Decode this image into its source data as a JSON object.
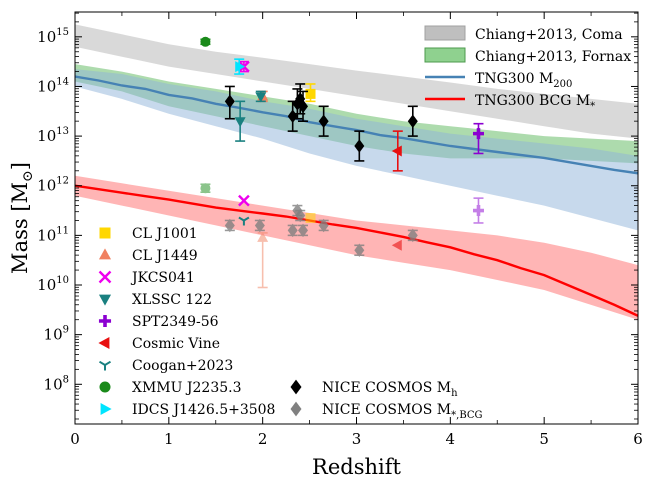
{
  "chart_data": {
    "type": "scatter",
    "title": "",
    "xlabel": "Redshift",
    "ylabel": "Mass [M",
    "ylabel_sub": "⊙",
    "ylabel_close": "]",
    "xlim": [
      0,
      6
    ],
    "ylim_log10": [
      7.2,
      15.5
    ],
    "grid": false,
    "legend_position": "upper-right / lower-left",
    "x_ticks": [
      0,
      1,
      2,
      3,
      4,
      5,
      6
    ],
    "x_tick_labels": [
      "0",
      "1",
      "2",
      "3",
      "4",
      "5",
      "6"
    ],
    "y_ticks_log10": [
      8,
      9,
      10,
      11,
      12,
      13,
      14,
      15
    ],
    "y_tick_labels": [
      {
        "base": "10",
        "exp": "8"
      },
      {
        "base": "10",
        "exp": "9"
      },
      {
        "base": "10",
        "exp": "10"
      },
      {
        "base": "10",
        "exp": "11"
      },
      {
        "base": "10",
        "exp": "12"
      },
      {
        "base": "10",
        "exp": "13"
      },
      {
        "base": "10",
        "exp": "14"
      },
      {
        "base": "10",
        "exp": "15"
      }
    ],
    "bands": [
      {
        "name": "Chiang+2013, Coma",
        "color": "#bfbfbf",
        "opacity": 0.6,
        "x": [
          0,
          0.5,
          1,
          1.5,
          2,
          2.5,
          3,
          3.5,
          4,
          4.5,
          5,
          5.5,
          6
        ],
        "lower_log10": [
          14.8,
          14.6,
          14.4,
          14.25,
          14.1,
          13.95,
          13.8,
          13.65,
          13.5,
          13.35,
          13.2,
          13.05,
          12.95
        ],
        "upper_log10": [
          15.25,
          15.05,
          14.85,
          14.7,
          14.58,
          14.45,
          14.32,
          14.2,
          14.08,
          13.95,
          13.85,
          13.75,
          13.65
        ]
      },
      {
        "name": "Chiang+2013, Fornax",
        "color": "#5cb85c",
        "opacity": 0.5,
        "x": [
          0,
          0.5,
          1,
          1.5,
          2,
          2.5,
          3,
          3.5,
          4,
          4.5,
          5,
          5.5,
          6
        ],
        "lower_log10": [
          14.1,
          13.9,
          13.6,
          13.4,
          13.2,
          13.0,
          12.8,
          12.65,
          12.55,
          12.55,
          12.55,
          12.5,
          12.45
        ],
        "upper_log10": [
          14.45,
          14.3,
          14.1,
          13.95,
          13.8,
          13.65,
          13.45,
          13.3,
          13.2,
          13.1,
          13.0,
          12.95,
          12.9
        ]
      },
      {
        "name": "TNG300 M200 scatter",
        "color": "#8fb4d9",
        "opacity": 0.5,
        "x": [
          0,
          0.5,
          1,
          1.5,
          2,
          2.5,
          3,
          3.5,
          4,
          4.5,
          5,
          5.5,
          6
        ],
        "lower_log10": [
          14.0,
          13.75,
          13.45,
          13.2,
          12.95,
          12.65,
          12.4,
          12.2,
          12.0,
          11.8,
          11.6,
          11.35,
          11.1
        ],
        "upper_log10": [
          14.35,
          14.25,
          14.05,
          13.9,
          13.7,
          13.55,
          13.35,
          13.2,
          13.05,
          12.95,
          12.85,
          12.75,
          12.6
        ]
      },
      {
        "name": "TNG300 BCG M* scatter",
        "color": "#ff6b6b",
        "opacity": 0.5,
        "x": [
          0,
          0.5,
          1,
          1.5,
          2,
          2.5,
          3,
          3.5,
          4,
          4.5,
          5,
          5.5,
          6
        ],
        "lower_log10": [
          11.8,
          11.6,
          11.4,
          11.2,
          11.0,
          10.8,
          10.6,
          10.45,
          10.3,
          10.1,
          9.9,
          9.6,
          9.3
        ],
        "upper_log10": [
          12.2,
          12.05,
          11.9,
          11.75,
          11.6,
          11.45,
          11.3,
          11.2,
          11.1,
          11.0,
          10.85,
          10.65,
          10.4
        ]
      }
    ],
    "lines": [
      {
        "name": "TNG300 M",
        "sub": "200",
        "color": "#4682b4",
        "x": [
          0,
          0.25,
          0.5,
          0.75,
          1,
          1.25,
          1.5,
          1.75,
          2,
          2.25,
          2.5,
          2.75,
          3,
          3.25,
          3.5,
          3.75,
          4,
          4.25,
          4.5,
          4.75,
          5,
          5.25,
          5.5,
          5.75,
          6
        ],
        "y_log10": [
          14.2,
          14.12,
          14.02,
          13.95,
          13.83,
          13.76,
          13.65,
          13.57,
          13.48,
          13.4,
          13.28,
          13.2,
          13.12,
          13.02,
          12.96,
          12.88,
          12.8,
          12.74,
          12.68,
          12.62,
          12.56,
          12.48,
          12.4,
          12.32,
          12.25
        ]
      },
      {
        "name": "TNG300 BCG M",
        "sub": "*",
        "color": "#ff0000",
        "x": [
          0,
          0.25,
          0.5,
          0.75,
          1,
          1.25,
          1.5,
          1.75,
          2,
          2.25,
          2.5,
          2.75,
          3,
          3.25,
          3.5,
          3.75,
          4,
          4.25,
          4.5,
          4.75,
          5,
          5.25,
          5.5,
          5.75,
          6
        ],
        "y_log10": [
          12.0,
          11.93,
          11.86,
          11.79,
          11.72,
          11.64,
          11.56,
          11.5,
          11.44,
          11.38,
          11.3,
          11.22,
          11.15,
          11.06,
          10.97,
          10.86,
          10.76,
          10.62,
          10.5,
          10.34,
          10.2,
          10.0,
          9.8,
          9.6,
          9.38
        ]
      }
    ],
    "points": [
      {
        "name": "CL J1001",
        "marker": "square",
        "color": "#ffd700",
        "x": 2.51,
        "y_log10": 13.85,
        "err_lo": 0.15,
        "err_hi": 0.2,
        "alpha": 1
      },
      {
        "name": "CL J1001 BCG",
        "marker": "square",
        "color": "#ffd700",
        "x": 2.51,
        "y_log10": 11.35,
        "err_lo": 0.05,
        "err_hi": 0.05,
        "alpha": 0.5
      },
      {
        "name": "CL J1449",
        "marker": "triangle-up",
        "color": "#f08060",
        "x": 2.0,
        "y_log10": 13.8,
        "err_lo": 0.1,
        "err_hi": 0.1,
        "alpha": 1
      },
      {
        "name": "CL J1449 BCG",
        "marker": "triangle-up",
        "color": "#f08060",
        "x": 2.0,
        "y_log10": 10.95,
        "err_lo": 1.0,
        "err_hi": 0.1,
        "alpha": 0.5
      },
      {
        "name": "JKCS041",
        "marker": "x",
        "color": "#ee00ee",
        "x": 1.8,
        "y_log10": 14.4,
        "err_lo": 0.1,
        "err_hi": 0.1,
        "alpha": 1
      },
      {
        "name": "JKCS041 BCG",
        "marker": "x",
        "color": "#ee00ee",
        "x": 1.8,
        "y_log10": 11.7,
        "err_lo": 0,
        "err_hi": 0,
        "alpha": 1
      },
      {
        "name": "XLSSC 122",
        "marker": "triangle-down",
        "color": "#1a8080",
        "x": 1.98,
        "y_log10": 13.8,
        "err_lo": 0.1,
        "err_hi": 0.1,
        "alpha": 1
      },
      {
        "name": "XLSSC 122 b",
        "marker": "triangle-down",
        "color": "#1a8080",
        "x": 1.76,
        "y_log10": 13.3,
        "err_lo": 0.4,
        "err_hi": 0.4,
        "alpha": 1
      },
      {
        "name": "SPT2349-56",
        "marker": "plus",
        "color": "#8b00d1",
        "x": 4.3,
        "y_log10": 13.05,
        "err_lo": 0.4,
        "err_hi": 0.2,
        "alpha": 1
      },
      {
        "name": "SPT2349-56 BCG",
        "marker": "plus",
        "color": "#8b00d1",
        "x": 4.3,
        "y_log10": 11.5,
        "err_lo": 0.25,
        "err_hi": 0.25,
        "alpha": 0.5
      },
      {
        "name": "Cosmic Vine",
        "marker": "triangle-left",
        "color": "#e81010",
        "x": 3.44,
        "y_log10": 12.7,
        "err_lo": 0.4,
        "err_hi": 0.4,
        "alpha": 1
      },
      {
        "name": "Cosmic Vine BCG",
        "marker": "triangle-left",
        "color": "#e81010",
        "x": 3.44,
        "y_log10": 10.8,
        "err_lo": 0,
        "err_hi": 0,
        "alpha": 0.6
      },
      {
        "name": "Coogan+2023",
        "marker": "tri",
        "color": "#1a8080",
        "x": 1.8,
        "y_log10": 11.3,
        "err_lo": 0,
        "err_hi": 0,
        "alpha": 1
      },
      {
        "name": "XMMU J2235.3",
        "marker": "circle",
        "color": "#1a8a1a",
        "x": 1.39,
        "y_log10": 14.9,
        "err_lo": 0.05,
        "err_hi": 0.05,
        "alpha": 1
      },
      {
        "name": "XMMU J2235.3 BCG",
        "marker": "circle",
        "color": "#1a8a1a",
        "x": 1.39,
        "y_log10": 11.95,
        "err_lo": 0.08,
        "err_hi": 0.08,
        "alpha": 0.5
      },
      {
        "name": "IDCS J1426.5+3508",
        "marker": "triangle-right",
        "color": "#00e5ff",
        "x": 1.75,
        "y_log10": 14.4,
        "err_lo": 0.15,
        "err_hi": 0.15,
        "alpha": 1
      },
      {
        "name": "NICE Mh 1",
        "marker": "diamond",
        "color": "#000000",
        "x": 1.65,
        "y_log10": 13.7,
        "err_lo": 0.35,
        "err_hi": 0.3,
        "alpha": 1
      },
      {
        "name": "NICE Mh 2",
        "marker": "diamond",
        "color": "#000000",
        "x": 2.32,
        "y_log10": 13.4,
        "err_lo": 0.3,
        "err_hi": 0.3,
        "alpha": 1
      },
      {
        "name": "NICE Mh 3",
        "marker": "diamond",
        "color": "#000000",
        "x": 2.37,
        "y_log10": 13.65,
        "err_lo": 0.3,
        "err_hi": 0.3,
        "alpha": 1
      },
      {
        "name": "NICE Mh 4",
        "marker": "diamond",
        "color": "#000000",
        "x": 2.4,
        "y_log10": 13.75,
        "err_lo": 0.3,
        "err_hi": 0.3,
        "alpha": 1
      },
      {
        "name": "NICE Mh 5",
        "marker": "diamond",
        "color": "#000000",
        "x": 2.43,
        "y_log10": 13.6,
        "err_lo": 0.3,
        "err_hi": 0.3,
        "alpha": 1
      },
      {
        "name": "NICE Mh 6",
        "marker": "diamond",
        "color": "#000000",
        "x": 2.65,
        "y_log10": 13.3,
        "err_lo": 0.3,
        "err_hi": 0.3,
        "alpha": 1
      },
      {
        "name": "NICE Mh 7",
        "marker": "diamond",
        "color": "#000000",
        "x": 3.03,
        "y_log10": 12.8,
        "err_lo": 0.3,
        "err_hi": 0.3,
        "alpha": 1
      },
      {
        "name": "NICE Mh 8",
        "marker": "diamond",
        "color": "#000000",
        "x": 3.6,
        "y_log10": 13.3,
        "err_lo": 0.3,
        "err_hi": 0.3,
        "alpha": 1
      },
      {
        "name": "NICE M* 1",
        "marker": "diamond",
        "color": "#808080",
        "x": 1.65,
        "y_log10": 11.2,
        "err_lo": 0.1,
        "err_hi": 0.1,
        "alpha": 0.8
      },
      {
        "name": "NICE M* 2",
        "marker": "diamond",
        "color": "#808080",
        "x": 1.97,
        "y_log10": 11.2,
        "err_lo": 0.1,
        "err_hi": 0.1,
        "alpha": 0.8
      },
      {
        "name": "NICE M* 3",
        "marker": "diamond",
        "color": "#808080",
        "x": 2.32,
        "y_log10": 11.1,
        "err_lo": 0.1,
        "err_hi": 0.1,
        "alpha": 0.8
      },
      {
        "name": "NICE M* 4",
        "marker": "diamond",
        "color": "#808080",
        "x": 2.37,
        "y_log10": 11.5,
        "err_lo": 0.1,
        "err_hi": 0.1,
        "alpha": 0.8
      },
      {
        "name": "NICE M* 5",
        "marker": "diamond",
        "color": "#808080",
        "x": 2.4,
        "y_log10": 11.4,
        "err_lo": 0.1,
        "err_hi": 0.1,
        "alpha": 0.8
      },
      {
        "name": "NICE M* 6",
        "marker": "diamond",
        "color": "#808080",
        "x": 2.43,
        "y_log10": 11.1,
        "err_lo": 0.1,
        "err_hi": 0.1,
        "alpha": 0.8
      },
      {
        "name": "NICE M* 7",
        "marker": "diamond",
        "color": "#808080",
        "x": 2.65,
        "y_log10": 11.2,
        "err_lo": 0.1,
        "err_hi": 0.1,
        "alpha": 0.8
      },
      {
        "name": "NICE M* 8",
        "marker": "diamond",
        "color": "#808080",
        "x": 3.03,
        "y_log10": 10.7,
        "err_lo": 0.1,
        "err_hi": 0.1,
        "alpha": 0.8
      },
      {
        "name": "NICE M* 9",
        "marker": "diamond",
        "color": "#808080",
        "x": 3.6,
        "y_log10": 11.0,
        "err_lo": 0.1,
        "err_hi": 0.1,
        "alpha": 0.8
      }
    ],
    "legend_top": [
      {
        "kind": "band",
        "label": "Chiang+2013, Coma",
        "sub": "",
        "color": "#bfbfbf",
        "edge": "#a0a0a0"
      },
      {
        "kind": "band",
        "label": "Chiang+2013, Fornax",
        "sub": "",
        "color": "#8fd18f",
        "edge": "#4c9a4c"
      },
      {
        "kind": "line",
        "label": "TNG300 M",
        "sub": "200",
        "color": "#4682b4"
      },
      {
        "kind": "line",
        "label": "TNG300 BCG M",
        "sub": "*",
        "color": "#ff0000"
      }
    ],
    "legend_left": [
      {
        "label": "CL J1001",
        "marker": "square",
        "color": "#ffd700"
      },
      {
        "label": "CL J1449",
        "marker": "triangle-up",
        "color": "#f08060"
      },
      {
        "label": "JKCS041",
        "marker": "x",
        "color": "#ee00ee"
      },
      {
        "label": "XLSSC 122",
        "marker": "triangle-down",
        "color": "#1a8080"
      },
      {
        "label": "SPT2349-56",
        "marker": "plus",
        "color": "#8b00d1"
      },
      {
        "label": "Cosmic Vine",
        "marker": "triangle-left",
        "color": "#e81010"
      },
      {
        "label": "Coogan+2023",
        "marker": "tri",
        "color": "#1a8080"
      },
      {
        "label": "XMMU J2235.3",
        "marker": "circle",
        "color": "#1a8a1a"
      },
      {
        "label": "IDCS J1426.5+3508",
        "marker": "triangle-right",
        "color": "#00e5ff"
      }
    ],
    "legend_right": [
      {
        "label": "NICE COSMOS M",
        "sub": "h",
        "marker": "diamond",
        "color": "#000000"
      },
      {
        "label": "NICE COSMOS M",
        "sub": "*,BCG",
        "marker": "diamond",
        "color": "#808080"
      }
    ]
  }
}
